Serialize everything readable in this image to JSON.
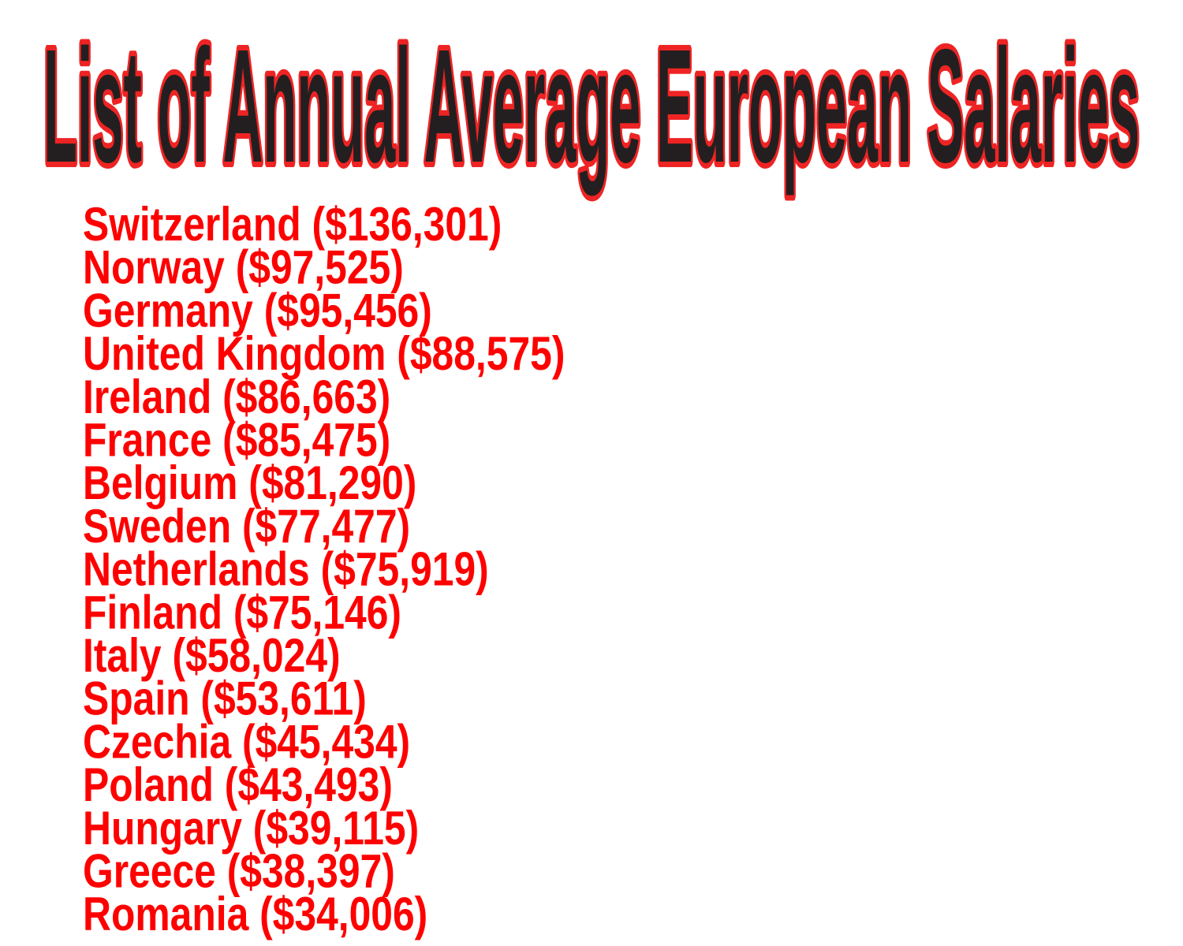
{
  "header": {
    "title": "List of Annual Average European Salaries"
  },
  "list": {
    "items": [
      "Switzerland ($136,301)",
      "Norway ($97,525)",
      "Germany ($95,456)",
      "United Kingdom ($88,575)",
      "Ireland ($86,663)",
      "France ($85,475)",
      "Belgium ($81,290)",
      "Sweden ($77,477)",
      "Netherlands ($75,919)",
      "Finland ($75,146)",
      "Italy ($58,024)",
      "Spain ($53,611)",
      "Czechia ($45,434)",
      "Poland ($43,493)",
      "Hungary ($39,115)",
      "Greece ($38,397)",
      "Romania ($34,006)"
    ]
  }
}
